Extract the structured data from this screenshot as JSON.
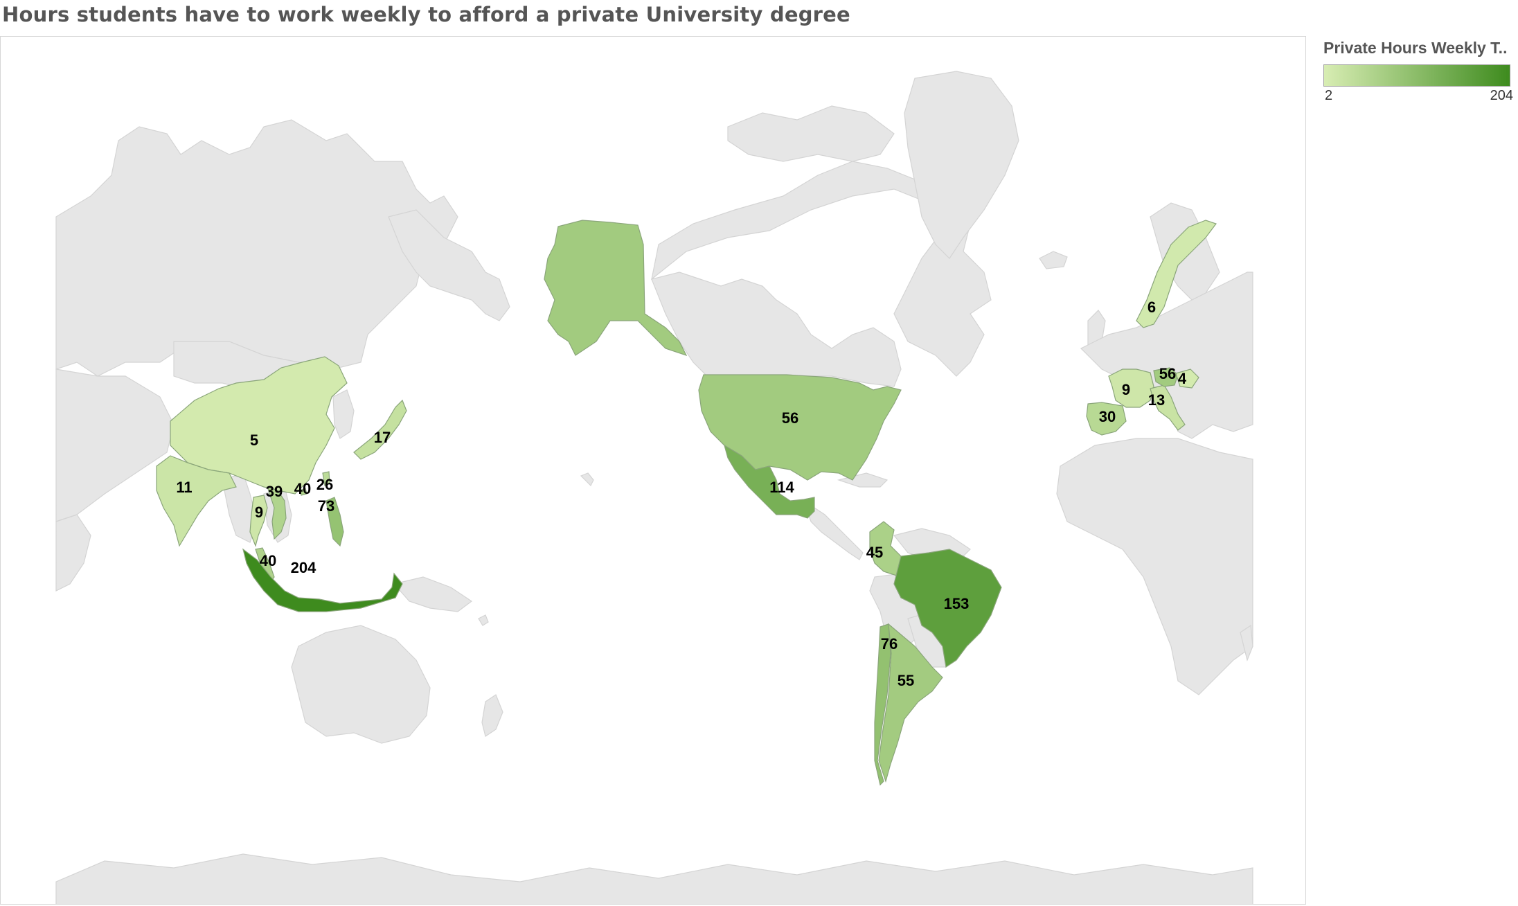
{
  "title": "Hours students have to work weekly to afford a private University degree",
  "legend": {
    "title": "Private Hours Weekly T..",
    "min": "2",
    "max": "204",
    "color_min": "#d8edb3",
    "color_max": "#3e8b1e"
  },
  "colors": {
    "land_unselected": "#e6e6e6",
    "water": "#ffffff",
    "border": "#c4c4c4"
  },
  "map_data": {
    "type": "choropleth",
    "measure": "Private Hours Weekly T..",
    "range": [
      2,
      204
    ],
    "regions": [
      {
        "id": "alaska",
        "value": 56
      },
      {
        "id": "usa",
        "value": 56,
        "label": "56"
      },
      {
        "id": "mexico",
        "value": 114,
        "label": "114"
      },
      {
        "id": "colombia",
        "value": 45,
        "label": "45"
      },
      {
        "id": "brazil",
        "value": 153,
        "label": "153"
      },
      {
        "id": "chile",
        "value": 76,
        "label": "76"
      },
      {
        "id": "argentina",
        "value": 55,
        "label": "55"
      },
      {
        "id": "norway",
        "value": 6,
        "label": "6"
      },
      {
        "id": "france",
        "value": 9,
        "label": "9"
      },
      {
        "id": "spain",
        "value": 30,
        "label": "30"
      },
      {
        "id": "italy",
        "value": 13,
        "label": "13"
      },
      {
        "id": "central-europe-a",
        "value": 56,
        "label": "56"
      },
      {
        "id": "central-europe-b",
        "value": 4,
        "label": "4"
      },
      {
        "id": "china",
        "value": 5,
        "label": "5"
      },
      {
        "id": "india",
        "value": 11,
        "label": "11"
      },
      {
        "id": "japan",
        "value": 17,
        "label": "17"
      },
      {
        "id": "thailand",
        "value": 9,
        "label": "9"
      },
      {
        "id": "vietnam",
        "value": 39,
        "label": "39"
      },
      {
        "id": "hong-kong",
        "value": 40,
        "label": "40"
      },
      {
        "id": "taiwan",
        "value": 26,
        "label": "26"
      },
      {
        "id": "philippines",
        "value": 73,
        "label": "73"
      },
      {
        "id": "malaysia",
        "value": 40,
        "label": "40"
      },
      {
        "id": "indonesia",
        "value": 204,
        "label": "204"
      }
    ]
  }
}
